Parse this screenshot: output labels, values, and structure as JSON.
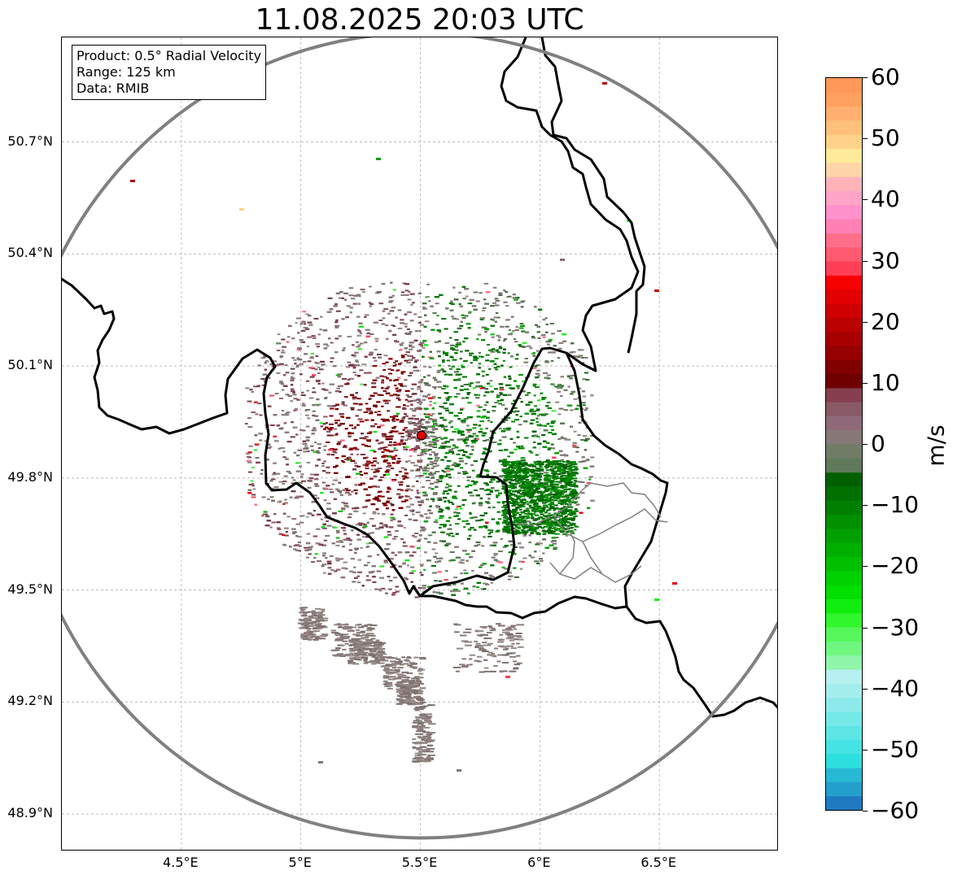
{
  "title": "11.08.2025 20:03 UTC",
  "info_box": {
    "product": "Product: 0.5° Radial Velocity",
    "range": "Range: 125 km",
    "data": "Data: RMIB"
  },
  "map": {
    "lon_range": [
      4.0,
      7.0
    ],
    "lat_range": [
      48.8,
      50.98
    ],
    "lon_ticks": [
      {
        "value": 4.5,
        "label": "4.5°E"
      },
      {
        "value": 5.0,
        "label": "5°E"
      },
      {
        "value": 5.5,
        "label": "5.5°E"
      },
      {
        "value": 6.0,
        "label": "6°E"
      },
      {
        "value": 6.5,
        "label": "6.5°E"
      }
    ],
    "lat_ticks": [
      {
        "value": 50.7,
        "label": "50.7°N"
      },
      {
        "value": 50.4,
        "label": "50.4°N"
      },
      {
        "value": 50.1,
        "label": "50.1°N"
      },
      {
        "value": 49.8,
        "label": "49.8°N"
      },
      {
        "value": 49.5,
        "label": "49.5°N"
      },
      {
        "value": 49.2,
        "label": "49.2°N"
      },
      {
        "value": 48.9,
        "label": "48.9°N"
      }
    ],
    "grid": true,
    "radar_site": {
      "lon": 5.505,
      "lat": 49.914
    },
    "range_ring_km": 125
  },
  "colorbar": {
    "unit": "m/s",
    "range": [
      -60,
      60
    ],
    "ticks": [
      {
        "value": 60,
        "label": "60"
      },
      {
        "value": 50,
        "label": "50"
      },
      {
        "value": 40,
        "label": "40"
      },
      {
        "value": 30,
        "label": "30"
      },
      {
        "value": 20,
        "label": "20"
      },
      {
        "value": 10,
        "label": "10"
      },
      {
        "value": 0,
        "label": "0"
      },
      {
        "value": -10,
        "label": "−10"
      },
      {
        "value": -20,
        "label": "−20"
      },
      {
        "value": -30,
        "label": "−30"
      },
      {
        "value": -40,
        "label": "−40"
      },
      {
        "value": -50,
        "label": "−50"
      },
      {
        "value": -60,
        "label": "−60"
      }
    ],
    "colors_bottom_to_top": [
      "#1f7ac2",
      "#239fcc",
      "#27b8d3",
      "#2edfdf",
      "#45e3e3",
      "#5ee6e6",
      "#75e8e8",
      "#8eeaea",
      "#a4eded",
      "#b6f0f0",
      "#8ff5a9",
      "#6ff77f",
      "#55f75a",
      "#31f52d",
      "#10ee10",
      "#00df00",
      "#00d000",
      "#00c000",
      "#00b000",
      "#00a000",
      "#009000",
      "#008000",
      "#007000",
      "#006000",
      "#5e7a5a",
      "#6f7d67",
      "#867876",
      "#8e6a78",
      "#8a5a67",
      "#853f4f",
      "#6e0000",
      "#800000",
      "#960000",
      "#a80000",
      "#bb0000",
      "#cf0000",
      "#e30000",
      "#f70000",
      "#ff3f55",
      "#ff5a70",
      "#ff6f8a",
      "#ff80b4",
      "#ff91cc",
      "#ffa5c8",
      "#ffb3b8",
      "#ffd4a8",
      "#ffe99a",
      "#ffd28a",
      "#ffc07c",
      "#ffb070",
      "#ffa060",
      "#ff9858"
    ]
  }
}
